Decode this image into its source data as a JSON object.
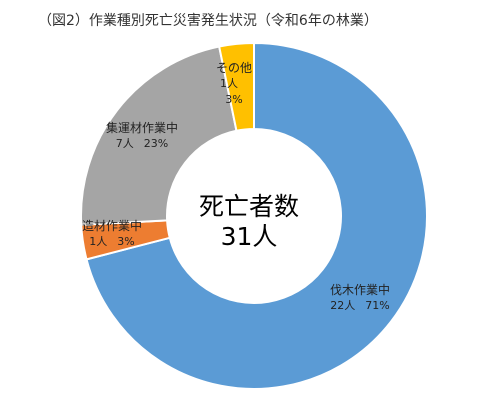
{
  "title": "（図2）作業種別死亡災害発生状況（令和6年の林業）",
  "center": {
    "line1": "死亡者数",
    "line2": "31人"
  },
  "colors": {
    "background": "#ffffff",
    "separator": "#ffffff"
  },
  "chart_data": {
    "type": "pie",
    "variant": "donut",
    "title": "（図2）作業種別死亡災害発生状況（令和6年の林業）",
    "total_label": "死亡者数 31人",
    "slices": [
      {
        "name": "伐木作業中",
        "count": "22人",
        "percent": "71%",
        "value": 22,
        "color": "#5b9bd5"
      },
      {
        "name": "造材作業中",
        "count": "1人",
        "percent": "3%",
        "value": 1,
        "color": "#ed7d31"
      },
      {
        "name": "集運材作業中",
        "count": "7人",
        "percent": "23%",
        "value": 7,
        "color": "#a5a5a5"
      },
      {
        "name": "その他",
        "count": "1人",
        "percent": "3%",
        "value": 1,
        "color": "#ffc000"
      }
    ]
  }
}
